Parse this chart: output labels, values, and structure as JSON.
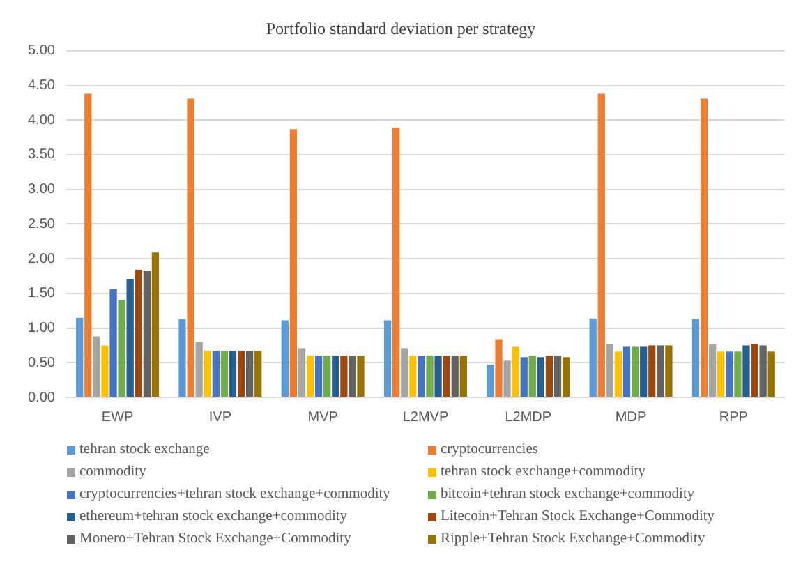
{
  "chart_data": {
    "type": "bar",
    "title": "Portfolio standard deviation per strategy",
    "categories": [
      "EWP",
      "IVP",
      "MVP",
      "L2MVP",
      "L2MDP",
      "MDP",
      "RPP"
    ],
    "series": [
      {
        "name": "tehran stock exchange",
        "color": "#5b9bd5",
        "values": [
          1.15,
          1.13,
          1.11,
          1.11,
          0.47,
          1.14,
          1.13
        ]
      },
      {
        "name": "cryptocurrencies",
        "color": "#ed7d31",
        "values": [
          4.38,
          4.31,
          3.87,
          3.89,
          0.84,
          4.38,
          4.31
        ]
      },
      {
        "name": "commodity",
        "color": "#a5a5a5",
        "values": [
          0.88,
          0.8,
          0.71,
          0.71,
          0.53,
          0.77,
          0.77
        ]
      },
      {
        "name": "tehran stock exchange+commodity",
        "color": "#ffc000",
        "values": [
          0.75,
          0.67,
          0.6,
          0.6,
          0.73,
          0.66,
          0.66
        ]
      },
      {
        "name": "cryptocurrencies+tehran stock exchange+commodity",
        "color": "#4472c4",
        "values": [
          1.56,
          0.67,
          0.6,
          0.6,
          0.58,
          0.73,
          0.66
        ]
      },
      {
        "name": "bitcoin+tehran stock exchange+commodity",
        "color": "#70ad47",
        "values": [
          1.4,
          0.67,
          0.6,
          0.6,
          0.6,
          0.73,
          0.66
        ]
      },
      {
        "name": "ethereum+tehran stock exchange+commodity",
        "color": "#255e91",
        "values": [
          1.71,
          0.67,
          0.6,
          0.6,
          0.58,
          0.73,
          0.75
        ]
      },
      {
        "name": "Litecoin+Tehran Stock Exchange+Commodity",
        "color": "#9e480e",
        "values": [
          1.84,
          0.67,
          0.6,
          0.6,
          0.6,
          0.75,
          0.77
        ]
      },
      {
        "name": "Monero+Tehran Stock Exchange+Commodity",
        "color": "#636363",
        "values": [
          1.82,
          0.67,
          0.6,
          0.6,
          0.6,
          0.75,
          0.75
        ]
      },
      {
        "name": "Ripple+Tehran Stock Exchange+Commodity",
        "color": "#997300",
        "values": [
          2.09,
          0.67,
          0.6,
          0.6,
          0.58,
          0.75,
          0.66
        ]
      }
    ],
    "ylim": [
      0,
      5
    ],
    "yticks": [
      {
        "value": 0,
        "label": "0.00"
      },
      {
        "value": 0.5,
        "label": "0.50"
      },
      {
        "value": 1,
        "label": "1.00"
      },
      {
        "value": 1.5,
        "label": "1.50"
      },
      {
        "value": 2,
        "label": "2.00"
      },
      {
        "value": 2.5,
        "label": "2.50"
      },
      {
        "value": 3,
        "label": "3.00"
      },
      {
        "value": 3.5,
        "label": "3.50"
      },
      {
        "value": 4,
        "label": "4.00"
      },
      {
        "value": 4.5,
        "label": "4.50"
      },
      {
        "value": 5,
        "label": "5.00"
      }
    ],
    "grid": "y",
    "legend": "bottom"
  }
}
